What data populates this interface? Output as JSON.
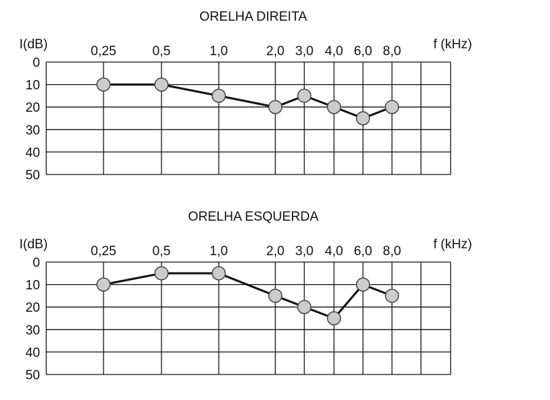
{
  "chart_data": [
    {
      "type": "line",
      "title": "ORELHA DIREITA",
      "ylabel": "I(dB)",
      "xlabel": "f (kHz)",
      "categories": [
        "0,25",
        "0,5",
        "1,0",
        "2,0",
        "3,0",
        "4,0",
        "6,0",
        "8,0"
      ],
      "y_ticks": [
        "0",
        "10",
        "20",
        "30",
        "40",
        "50"
      ],
      "ylim": [
        0,
        50
      ],
      "y_inverted": true,
      "grid": true,
      "series": [
        {
          "values": [
            10,
            10,
            15,
            20,
            15,
            20,
            25,
            20
          ]
        }
      ],
      "colors": {
        "line": "#111111",
        "marker_fill": "#cccccc",
        "marker_stroke": "#444444"
      }
    },
    {
      "type": "line",
      "title": "ORELHA ESQUERDA",
      "ylabel": "I(dB)",
      "xlabel": "f (kHz)",
      "categories": [
        "0,25",
        "0,5",
        "1,0",
        "2,0",
        "3,0",
        "4,0",
        "6,0",
        "8,0"
      ],
      "y_ticks": [
        "0",
        "10",
        "20",
        "30",
        "40",
        "50"
      ],
      "ylim": [
        0,
        50
      ],
      "y_inverted": true,
      "grid": true,
      "series": [
        {
          "values": [
            10,
            5,
            5,
            15,
            20,
            25,
            10,
            15
          ]
        }
      ],
      "colors": {
        "line": "#111111",
        "marker_fill": "#cccccc",
        "marker_stroke": "#444444"
      }
    }
  ]
}
